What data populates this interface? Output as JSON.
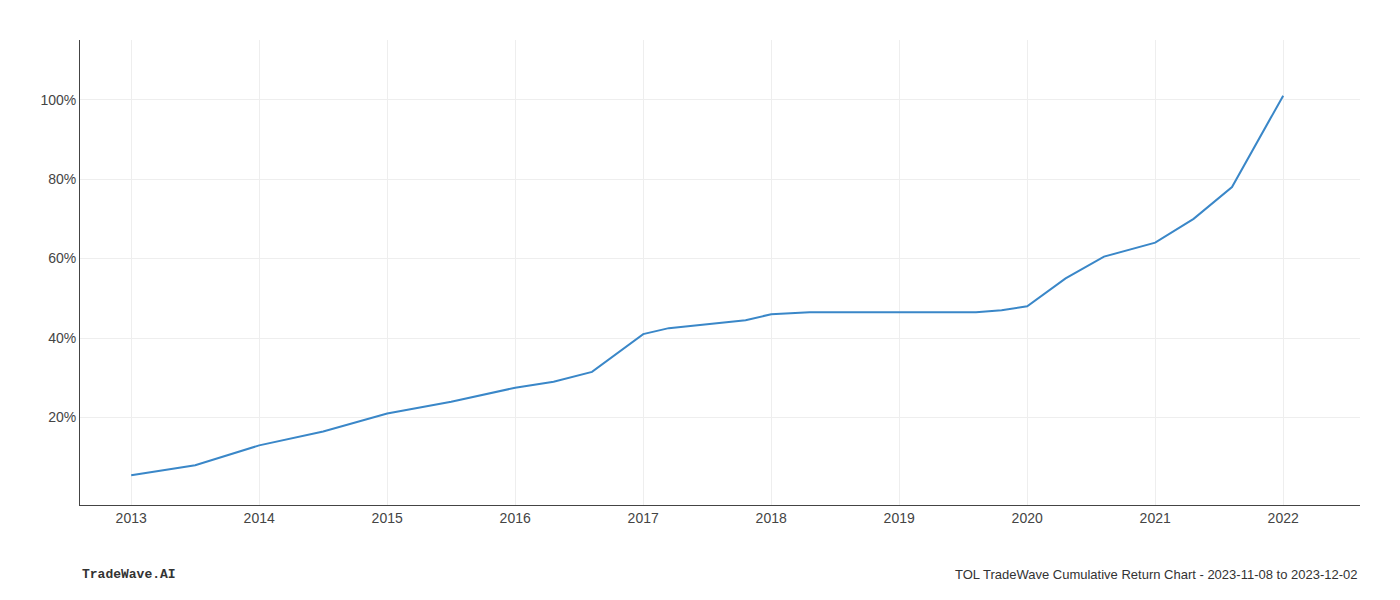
{
  "chart_data": {
    "type": "line",
    "x": [
      2013.0,
      2013.5,
      2014.0,
      2014.5,
      2015.0,
      2015.5,
      2016.0,
      2016.3,
      2016.6,
      2017.0,
      2017.2,
      2017.5,
      2017.8,
      2018.0,
      2018.3,
      2018.6,
      2019.0,
      2019.3,
      2019.6,
      2019.8,
      2020.0,
      2020.3,
      2020.6,
      2021.0,
      2021.3,
      2021.6,
      2022.0
    ],
    "values": [
      5.5,
      8.0,
      13.0,
      16.5,
      21.0,
      24.0,
      27.5,
      29.0,
      31.5,
      41.0,
      42.5,
      43.5,
      44.5,
      46.0,
      46.5,
      46.5,
      46.5,
      46.5,
      46.5,
      47.0,
      48.0,
      55.0,
      60.5,
      64.0,
      70.0,
      78.0,
      101.0
    ],
    "color": "#3a87c8",
    "xlim": [
      2012.6,
      2022.6
    ],
    "xticks": [
      2013,
      2014,
      2015,
      2016,
      2017,
      2018,
      2019,
      2020,
      2021,
      2022
    ],
    "ylim": [
      -2,
      115
    ],
    "yticks": [
      {
        "value": 20,
        "label": "20%"
      },
      {
        "value": 40,
        "label": "40%"
      },
      {
        "value": 60,
        "label": "60%"
      },
      {
        "value": 80,
        "label": "80%"
      },
      {
        "value": 100,
        "label": "100%"
      }
    ],
    "grid": true,
    "annotations": [
      {
        "text": "TradeWave.AI"
      },
      {
        "text": "TOL TradeWave Cumulative Return Chart - 2023-11-08 to 2023-12-02"
      }
    ]
  }
}
